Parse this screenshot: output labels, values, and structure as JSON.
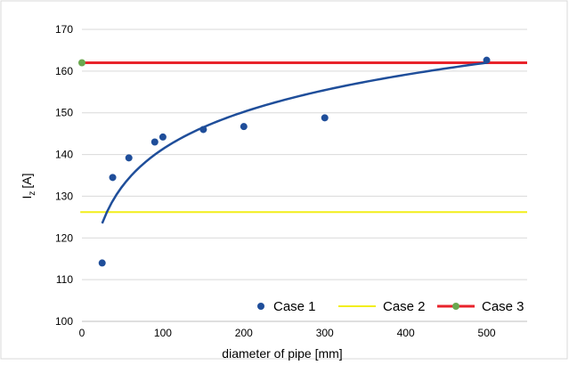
{
  "chart_data": {
    "type": "scatter",
    "xlabel": "diameter of pipe [mm]",
    "ylabel": "I",
    "ylabel_subscript": "z",
    "ylabel_unit": "[A]",
    "xlim": [
      0,
      550
    ],
    "ylim": [
      100,
      170
    ],
    "x_ticks": [
      0,
      100,
      200,
      300,
      400,
      500
    ],
    "y_ticks": [
      100,
      110,
      120,
      130,
      140,
      150,
      160,
      170
    ],
    "grid": "horizontal",
    "legend_position": "bottom-right",
    "series": [
      {
        "name": "Case 1",
        "kind": "scatter",
        "color": "#1f4e9a",
        "points": [
          [
            25,
            114.0
          ],
          [
            38,
            134.5
          ],
          [
            58,
            139.2
          ],
          [
            90,
            143.0
          ],
          [
            100,
            144.2
          ],
          [
            150,
            146.0
          ],
          [
            200,
            146.7
          ],
          [
            300,
            148.8
          ],
          [
            500,
            162.6
          ]
        ],
        "trendline": {
          "type": "logarithmic",
          "color": "#1f4e9a",
          "x_start": 25,
          "x_end": 500,
          "anchor_points": [
            [
              25,
              123.5
            ],
            [
              500,
              162.0
            ]
          ]
        }
      },
      {
        "name": "Case 2",
        "kind": "line",
        "color": "#f2ee1a",
        "y": 126.2,
        "x_range": [
          -2,
          550
        ]
      },
      {
        "name": "Case 3",
        "kind": "line",
        "color": "#e8232b",
        "marker_color": "#6aa84f",
        "y": 162.0,
        "x_range": [
          -2,
          550
        ],
        "marker_x": 0
      }
    ]
  }
}
